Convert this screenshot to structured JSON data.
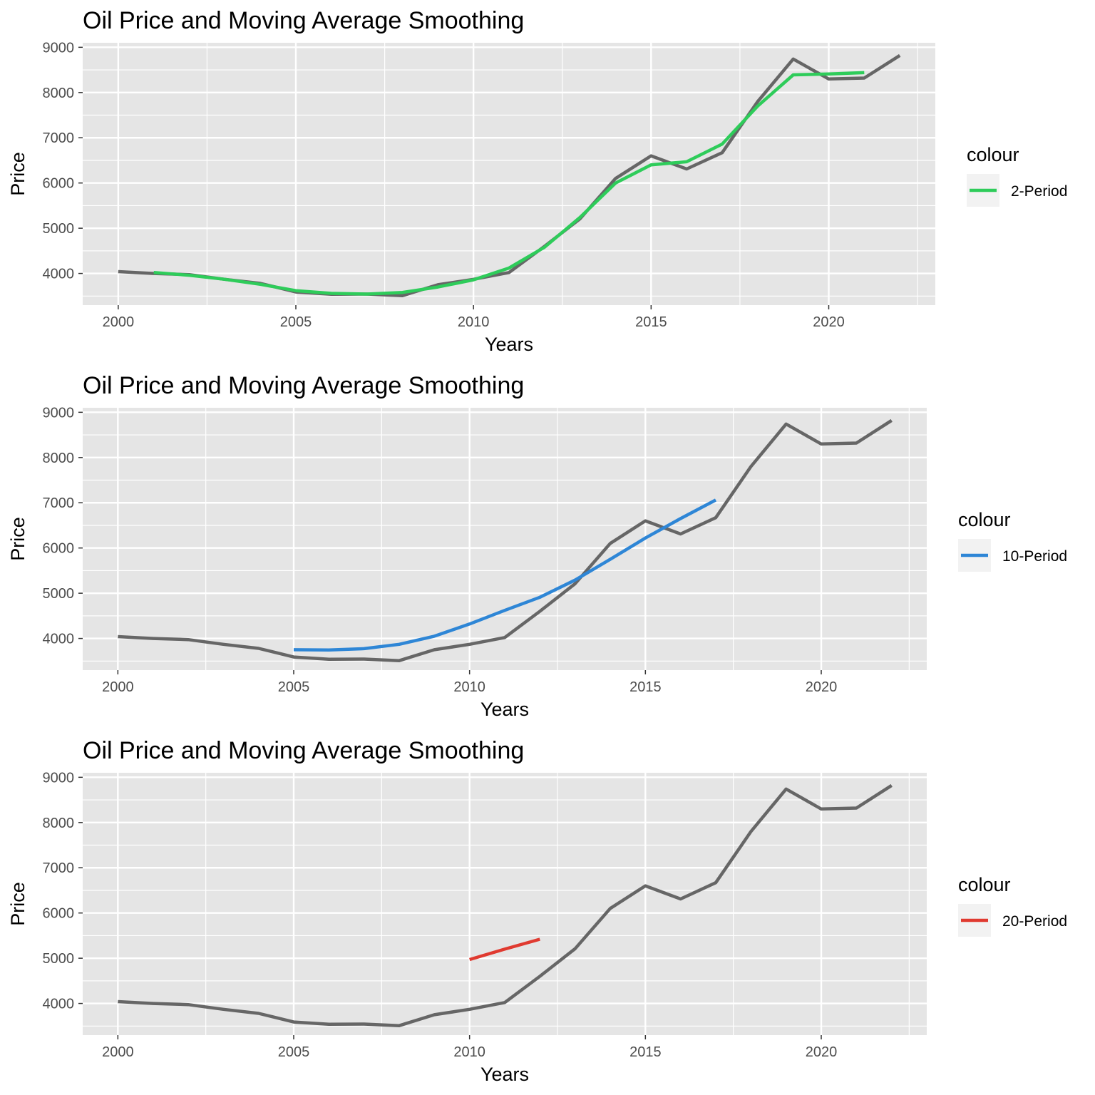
{
  "colors": {
    "panel_background": "#e5e5e5",
    "grid": "#ffffff",
    "price_line": "#666666",
    "two_period": "#2ecc5a",
    "ten_period": "#2e86d6",
    "twenty_period": "#e03a30",
    "tick_text": "#4d4d4d"
  },
  "chart_data": [
    {
      "type": "line",
      "title": "Oil Price and Moving Average Smoothing",
      "xlabel": "Years",
      "ylabel": "Price",
      "xlim": [
        1999,
        2023
      ],
      "ylim": [
        3300,
        9100
      ],
      "x_ticks": [
        2000,
        2005,
        2010,
        2015,
        2020
      ],
      "x_tick_labels": [
        "2000",
        "2005",
        "2010",
        "2015",
        "2020"
      ],
      "y_ticks": [
        4000,
        5000,
        6000,
        7000,
        8000,
        9000
      ],
      "y_tick_labels": [
        "4000",
        "5000",
        "6000",
        "7000",
        "8000",
        "9000"
      ],
      "grid": true,
      "legend": {
        "title": "colour",
        "position": "right",
        "entries": [
          "2-Period"
        ]
      },
      "series": [
        {
          "color_key": "price_line",
          "x": [
            2000,
            2001,
            2002,
            2003,
            2004,
            2005,
            2006,
            2007,
            2008,
            2009,
            2010,
            2011,
            2012,
            2013,
            2014,
            2015,
            2016,
            2017,
            2018,
            2019,
            2020,
            2021,
            2022
          ],
          "y": [
            4040,
            4000,
            3975,
            3870,
            3780,
            3590,
            3540,
            3545,
            3510,
            3750,
            3870,
            4020,
            4600,
            5210,
            6100,
            6600,
            6310,
            6670,
            7800,
            8740,
            8300,
            8320,
            8820
          ]
        },
        {
          "name": "2-Period",
          "color_key": "two_period",
          "x": [
            2001,
            2002,
            2003,
            2004,
            2005,
            2006,
            2007,
            2008,
            2009,
            2010,
            2011,
            2012,
            2013,
            2014,
            2015,
            2016,
            2017,
            2018,
            2019,
            2020,
            2021
          ],
          "y": [
            4020,
            3960,
            3870,
            3760,
            3620,
            3560,
            3545,
            3580,
            3700,
            3860,
            4120,
            4580,
            5240,
            6000,
            6400,
            6470,
            6860,
            7700,
            8390,
            8410,
            8440
          ]
        }
      ]
    },
    {
      "type": "line",
      "title": "Oil Price and Moving Average Smoothing",
      "xlabel": "Years",
      "ylabel": "Price",
      "xlim": [
        1999,
        2023
      ],
      "ylim": [
        3300,
        9100
      ],
      "x_ticks": [
        2000,
        2005,
        2010,
        2015,
        2020
      ],
      "x_tick_labels": [
        "2000",
        "2005",
        "2010",
        "2015",
        "2020"
      ],
      "y_ticks": [
        4000,
        5000,
        6000,
        7000,
        8000,
        9000
      ],
      "y_tick_labels": [
        "4000",
        "5000",
        "6000",
        "7000",
        "8000",
        "9000"
      ],
      "grid": true,
      "legend": {
        "title": "colour",
        "position": "right",
        "entries": [
          "10-Period"
        ]
      },
      "series": [
        {
          "color_key": "price_line",
          "x": [
            2000,
            2001,
            2002,
            2003,
            2004,
            2005,
            2006,
            2007,
            2008,
            2009,
            2010,
            2011,
            2012,
            2013,
            2014,
            2015,
            2016,
            2017,
            2018,
            2019,
            2020,
            2021,
            2022
          ],
          "y": [
            4040,
            4000,
            3975,
            3870,
            3780,
            3590,
            3540,
            3545,
            3510,
            3750,
            3870,
            4020,
            4600,
            5210,
            6100,
            6600,
            6310,
            6670,
            7800,
            8740,
            8300,
            8320,
            8820
          ]
        },
        {
          "name": "10-Period",
          "color_key": "ten_period",
          "x": [
            2005,
            2006,
            2007,
            2008,
            2009,
            2010,
            2011,
            2012,
            2013,
            2014,
            2015,
            2016,
            2017
          ],
          "y": [
            3750,
            3745,
            3775,
            3870,
            4050,
            4320,
            4620,
            4910,
            5290,
            5750,
            6220,
            6650,
            7060
          ]
        }
      ]
    },
    {
      "type": "line",
      "title": "Oil Price and Moving Average Smoothing",
      "xlabel": "Years",
      "ylabel": "Price",
      "xlim": [
        1999,
        2023
      ],
      "ylim": [
        3300,
        9100
      ],
      "x_ticks": [
        2000,
        2005,
        2010,
        2015,
        2020
      ],
      "x_tick_labels": [
        "2000",
        "2005",
        "2010",
        "2015",
        "2020"
      ],
      "y_ticks": [
        4000,
        5000,
        6000,
        7000,
        8000,
        9000
      ],
      "y_tick_labels": [
        "4000",
        "5000",
        "6000",
        "7000",
        "8000",
        "9000"
      ],
      "grid": true,
      "legend": {
        "title": "colour",
        "position": "right",
        "entries": [
          "20-Period"
        ]
      },
      "series": [
        {
          "color_key": "price_line",
          "x": [
            2000,
            2001,
            2002,
            2003,
            2004,
            2005,
            2006,
            2007,
            2008,
            2009,
            2010,
            2011,
            2012,
            2013,
            2014,
            2015,
            2016,
            2017,
            2018,
            2019,
            2020,
            2021,
            2022
          ],
          "y": [
            4040,
            4000,
            3975,
            3870,
            3780,
            3590,
            3540,
            3545,
            3510,
            3750,
            3870,
            4020,
            4600,
            5210,
            6100,
            6600,
            6310,
            6670,
            7800,
            8740,
            8300,
            8320,
            8820
          ]
        },
        {
          "name": "20-Period",
          "color_key": "twenty_period",
          "x": [
            2010,
            2011,
            2012
          ],
          "y": [
            4970,
            5200,
            5420
          ]
        }
      ]
    }
  ]
}
